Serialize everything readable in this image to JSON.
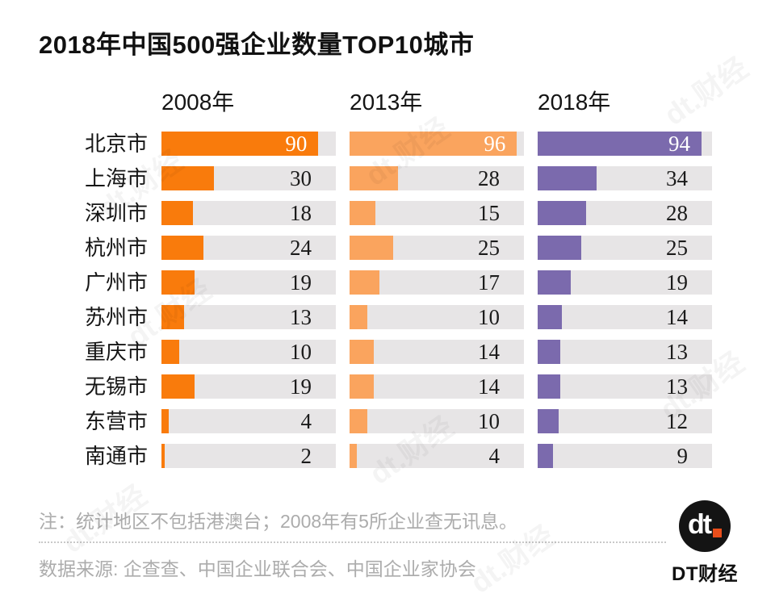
{
  "title": "2018年中国500强企业数量TOP10城市",
  "chart_data": {
    "type": "bar",
    "orientation": "horizontal",
    "title": "2018年中国500强企业数量TOP10城市",
    "categories": [
      "北京市",
      "上海市",
      "深圳市",
      "杭州市",
      "广州市",
      "苏州市",
      "重庆市",
      "无锡市",
      "东营市",
      "南通市"
    ],
    "series": [
      {
        "name": "2008年",
        "color": "#F97B0C",
        "values": [
          90,
          30,
          18,
          24,
          19,
          13,
          10,
          19,
          4,
          2
        ]
      },
      {
        "name": "2013年",
        "color": "#FAA45E",
        "values": [
          96,
          28,
          15,
          25,
          17,
          10,
          14,
          14,
          10,
          4
        ]
      },
      {
        "name": "2018年",
        "color": "#7B6AAD",
        "values": [
          94,
          34,
          28,
          25,
          19,
          14,
          13,
          13,
          12,
          9
        ]
      }
    ],
    "xlim": [
      0,
      100
    ],
    "grid": false,
    "track_color": "#E7E5E6",
    "value_labels": "shown at right of each bar track; values >= 60 shown in white inside the bar",
    "value_label_inside_threshold": 60,
    "legend_position": "column headers above each year group"
  },
  "footer": {
    "note": "注：统计地区不包括港澳台；2008年有5所企业查无讯息。",
    "source": "数据来源: 企查查、中国企业联合会、中国企业家协会"
  },
  "logo": {
    "mark": "dt",
    "text": "DT财经",
    "dot_color": "#E94E1B"
  },
  "watermark": {
    "text": "dt.财经"
  }
}
